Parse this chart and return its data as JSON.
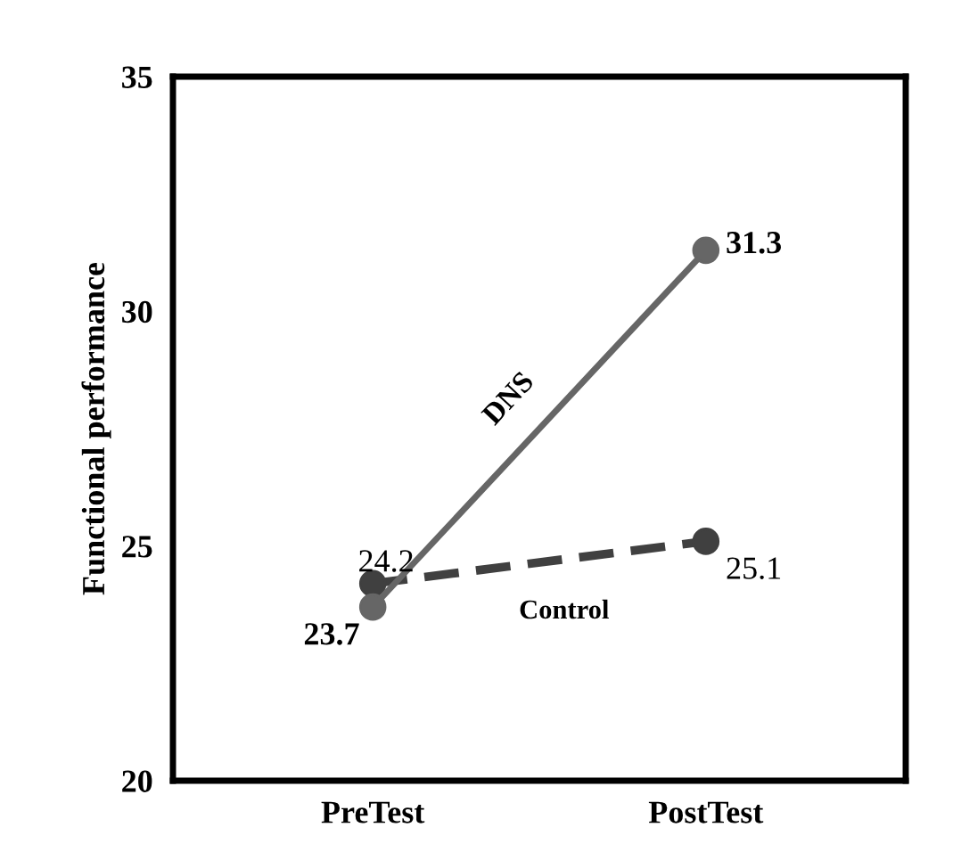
{
  "chart_data": {
    "type": "line",
    "ylabel": "Functional performance",
    "categories": [
      "PreTest",
      "PostTest"
    ],
    "series": [
      {
        "name": "DNS",
        "color": "#666666",
        "values": [
          23.7,
          31.3
        ],
        "line_style": "solid"
      },
      {
        "name": "Control",
        "color": "#404040",
        "values": [
          24.2,
          25.1
        ],
        "line_style": "dashed"
      }
    ],
    "ylim": [
      20,
      35
    ],
    "yticks": [
      20,
      25,
      30,
      35
    ],
    "grid": false,
    "marker": "circle",
    "data_labels": true
  }
}
